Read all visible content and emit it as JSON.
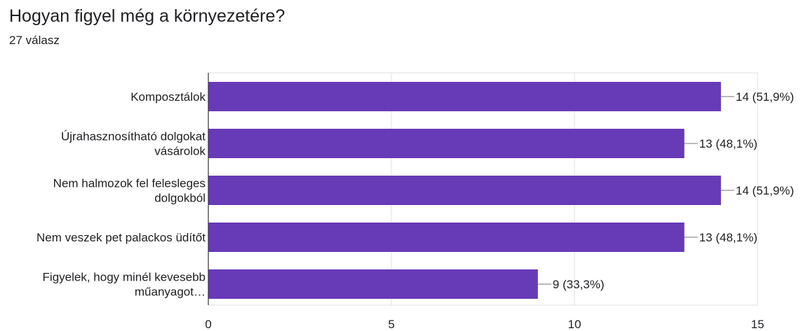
{
  "header": {
    "question": "Hogyan figyel még a környezetére?",
    "responses": "27 válasz"
  },
  "colors": {
    "bar": "#673ab7",
    "grid": "#e0e0e0",
    "axis": "#333333",
    "leader": "#757575"
  },
  "chart_data": {
    "type": "bar",
    "orientation": "horizontal",
    "categories": [
      [
        "Komposztálok"
      ],
      [
        "Újrahasznosítható dolgokat",
        "vásárolok"
      ],
      [
        "Nem halmozok fel felesleges",
        "dolgokból"
      ],
      [
        "Nem veszek pet palackos üdítőt"
      ],
      [
        "Figyelek, hogy minél kevesebb",
        "műanyagot…"
      ]
    ],
    "values": [
      14,
      13,
      14,
      13,
      9
    ],
    "data_labels": [
      "14 (51,9%)",
      "13 (48,1%)",
      "14 (51,9%)",
      "13 (48,1%)",
      "9 (33,3%)"
    ],
    "xlim": [
      0,
      15
    ],
    "xticks": [
      0,
      5,
      10,
      15
    ],
    "tick_labels": [
      "0",
      "5",
      "10",
      "15"
    ],
    "grid": true
  }
}
